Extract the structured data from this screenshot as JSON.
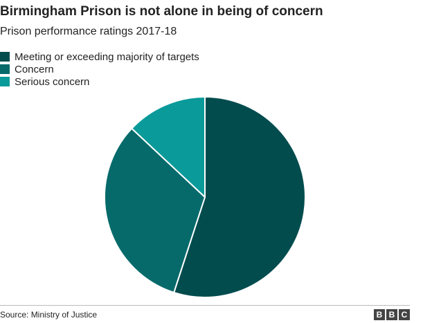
{
  "chart_data": {
    "type": "pie",
    "title": "Birmingham Prison is not alone in being of concern",
    "subtitle": "Prison performance ratings 2017-18",
    "categories": [
      "Meeting or exceeding majority of targets",
      "Concern",
      "Serious concern"
    ],
    "values": [
      55,
      32,
      13
    ],
    "colors": [
      "#024c4e",
      "#066a6b",
      "#0a9a9a"
    ],
    "legend_position": "top-left"
  },
  "footer": {
    "source": "Source: Ministry of Justice",
    "logo_letters": [
      "B",
      "B",
      "C"
    ]
  }
}
